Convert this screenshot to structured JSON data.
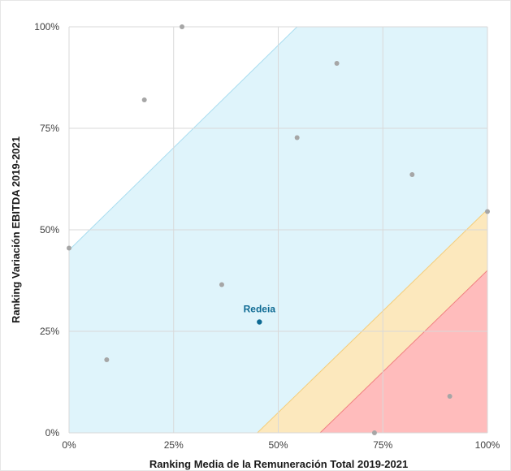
{
  "chart_data": {
    "type": "scatter",
    "xlabel": "Ranking Media de la Remuneración Total 2019-2021",
    "ylabel": "Ranking Variación EBITDA 2019-2021",
    "xlim": [
      0,
      1
    ],
    "ylim": [
      0,
      1
    ],
    "xticks": [
      "0%",
      "25%",
      "50%",
      "75%",
      "100%"
    ],
    "yticks": [
      "0%",
      "25%",
      "50%",
      "75%",
      "100%"
    ],
    "grid": true,
    "points": [
      {
        "x": 0.0,
        "y": 0.455
      },
      {
        "x": 0.09,
        "y": 0.18
      },
      {
        "x": 0.18,
        "y": 0.82
      },
      {
        "x": 0.27,
        "y": 1.0
      },
      {
        "x": 0.365,
        "y": 0.365
      },
      {
        "x": 0.545,
        "y": 0.727
      },
      {
        "x": 0.64,
        "y": 0.91
      },
      {
        "x": 0.73,
        "y": 0.0
      },
      {
        "x": 0.82,
        "y": 0.636
      },
      {
        "x": 0.91,
        "y": 0.09
      },
      {
        "x": 1.0,
        "y": 0.545
      }
    ],
    "highlight": {
      "label": "Redeia",
      "x": 0.455,
      "y": 0.273
    },
    "regions": [
      {
        "color": "#dff4fb",
        "edge": "#a9ddf0",
        "polygon": [
          [
            0,
            0.45
          ],
          [
            0.545,
            1
          ],
          [
            1,
            1
          ],
          [
            1,
            0.55
          ],
          [
            0.45,
            0
          ],
          [
            0,
            0
          ]
        ]
      },
      {
        "color": "#fce8bd",
        "edge": "#f4cd7a",
        "polygon": [
          [
            0.45,
            0
          ],
          [
            1,
            0.55
          ],
          [
            1,
            0.4
          ],
          [
            0.6,
            0
          ]
        ]
      },
      {
        "color": "#ffbcbc",
        "edge": "#f08080",
        "polygon": [
          [
            0.6,
            0
          ],
          [
            1,
            0.4
          ],
          [
            1,
            0
          ]
        ]
      }
    ],
    "colors": {
      "point": "#a6a6a6",
      "highlight": "#0e6a93",
      "grid": "#d9d9d9"
    }
  }
}
